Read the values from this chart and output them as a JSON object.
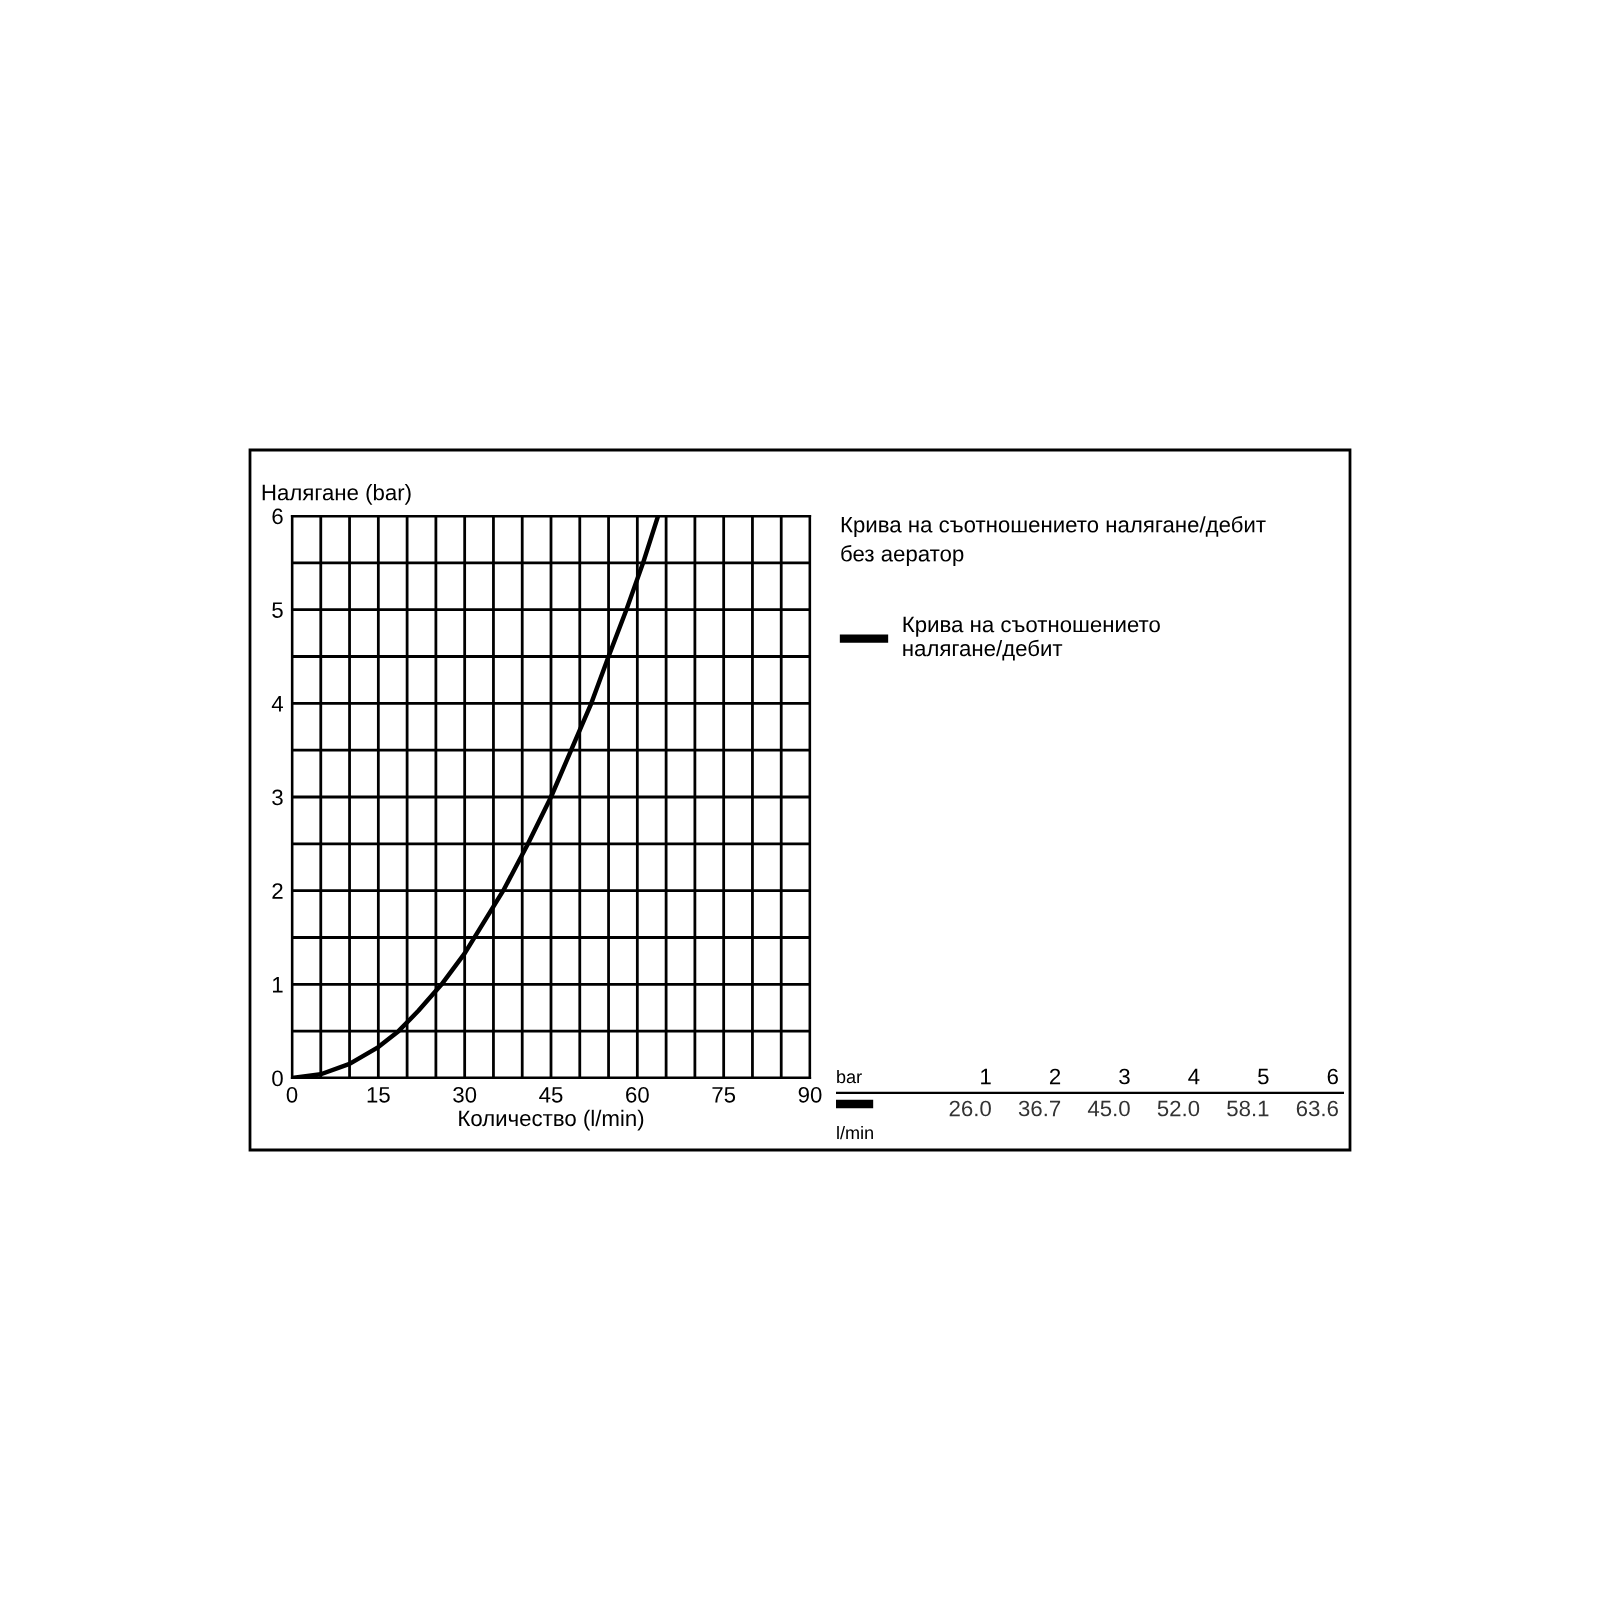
{
  "chart_data": {
    "type": "line",
    "xlabel": "Количество (l/min)",
    "ylabel": "Налягане (bar)",
    "series": [
      {
        "name": "Крива на съотношението\nналягане/дебит",
        "color": "#000000",
        "x": [
          0,
          5,
          10,
          15,
          18.5,
          22,
          26.0,
          30,
          36.7,
          41,
          45.0,
          48.5,
          52.0,
          55,
          58.1,
          61,
          63.6
        ],
        "values": [
          0,
          0.04,
          0.15,
          0.33,
          0.5,
          0.72,
          1,
          1.33,
          2,
          2.5,
          3,
          3.5,
          4,
          4.5,
          5,
          5.5,
          6
        ]
      }
    ],
    "xlim": [
      0,
      90
    ],
    "ylim": [
      0,
      6
    ],
    "xticks": [
      0,
      {
        "value": 5,
        "label": null
      },
      {
        "value": 10,
        "label": null
      },
      15,
      {
        "value": 20,
        "label": null
      },
      {
        "value": 25,
        "label": null
      },
      30,
      {
        "value": 35,
        "label": null
      },
      {
        "value": 40,
        "label": null
      },
      45,
      {
        "value": 50,
        "label": null
      },
      {
        "value": 55,
        "label": null
      },
      60,
      {
        "value": 65,
        "label": null
      },
      {
        "value": 70,
        "label": null
      },
      75,
      {
        "value": 80,
        "label": null
      },
      {
        "value": 85,
        "label": null
      },
      90
    ],
    "yticks": [
      0,
      {
        "value": 0.5,
        "label": null
      },
      1,
      {
        "value": 1.5,
        "label": null
      },
      2,
      {
        "value": 2.5,
        "label": null
      },
      3,
      {
        "value": 3.5,
        "label": null
      },
      4,
      {
        "value": 4.5,
        "label": null
      },
      5,
      {
        "value": 5.5,
        "label": null
      },
      6
    ],
    "grid": true,
    "legend": "top right",
    "marker": "none",
    "line_style": "solid",
    "annotations": [
      "Крива на съотношението налягане/дебит\nбез аератор",
      "bar",
      "l/min",
      "1",
      "2",
      "3",
      "4",
      "5",
      "6",
      "26.0",
      "36.7",
      "45.0",
      "52.0",
      "58.1",
      "63.6"
    ]
  }
}
